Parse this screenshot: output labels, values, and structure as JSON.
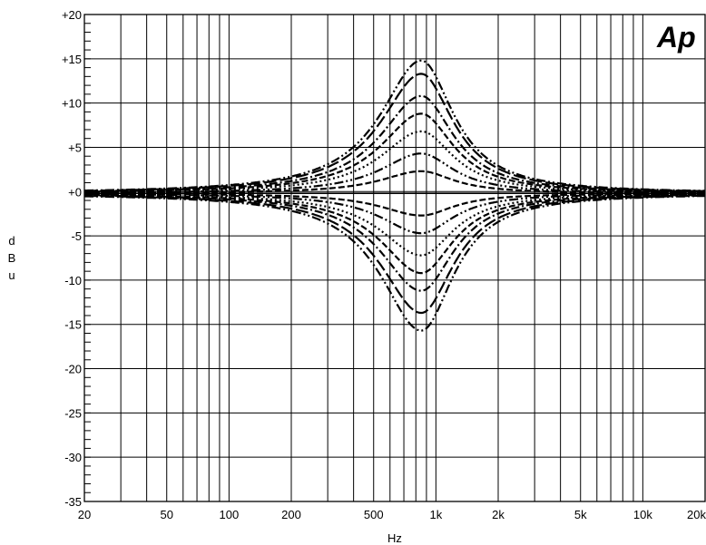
{
  "chart_data": {
    "type": "line",
    "title": "",
    "xlabel": "Hz",
    "ylabel": "dBu",
    "ylabel_letters": [
      "d",
      "B",
      "u"
    ],
    "logo": "Ap",
    "x_scale": "log",
    "xlim": [
      20,
      20000
    ],
    "ylim": [
      -35,
      20
    ],
    "grid": true,
    "x_ticks": [
      20,
      50,
      100,
      200,
      500,
      1000,
      2000,
      5000,
      10000,
      20000
    ],
    "x_tick_labels": [
      "20",
      "50",
      "100",
      "200",
      "500",
      "1k",
      "2k",
      "5k",
      "10k",
      "20k"
    ],
    "y_ticks": [
      20,
      15,
      10,
      5,
      0,
      -5,
      -10,
      -15,
      -20,
      -25,
      -30,
      -35
    ],
    "y_tick_labels": [
      "+20",
      "+15",
      "+10",
      "+5",
      "+0",
      "-5",
      "-10",
      "-15",
      "-20",
      "-25",
      "-30",
      "-35"
    ],
    "center_frequency": 850,
    "baseline_db": -0.2,
    "series": [
      {
        "gain_db": 15,
        "style": "dash-dot-dot"
      },
      {
        "gain_db": 13.5,
        "style": "long-dash"
      },
      {
        "gain_db": 11,
        "style": "dash-dot"
      },
      {
        "gain_db": 9,
        "style": "dash"
      },
      {
        "gain_db": 7,
        "style": "dot"
      },
      {
        "gain_db": 4.5,
        "style": "dash-dot-dot"
      },
      {
        "gain_db": 2.5,
        "style": "dash"
      },
      {
        "gain_db": 0,
        "style": "solid"
      },
      {
        "gain_db": -2.5,
        "style": "dash"
      },
      {
        "gain_db": -4.5,
        "style": "dash-dot-dot"
      },
      {
        "gain_db": -7,
        "style": "dot"
      },
      {
        "gain_db": -9,
        "style": "dash"
      },
      {
        "gain_db": -11,
        "style": "dash-dot"
      },
      {
        "gain_db": -13.5,
        "style": "long-dash"
      },
      {
        "gain_db": -15.5,
        "style": "dash-dot-dot"
      }
    ]
  }
}
